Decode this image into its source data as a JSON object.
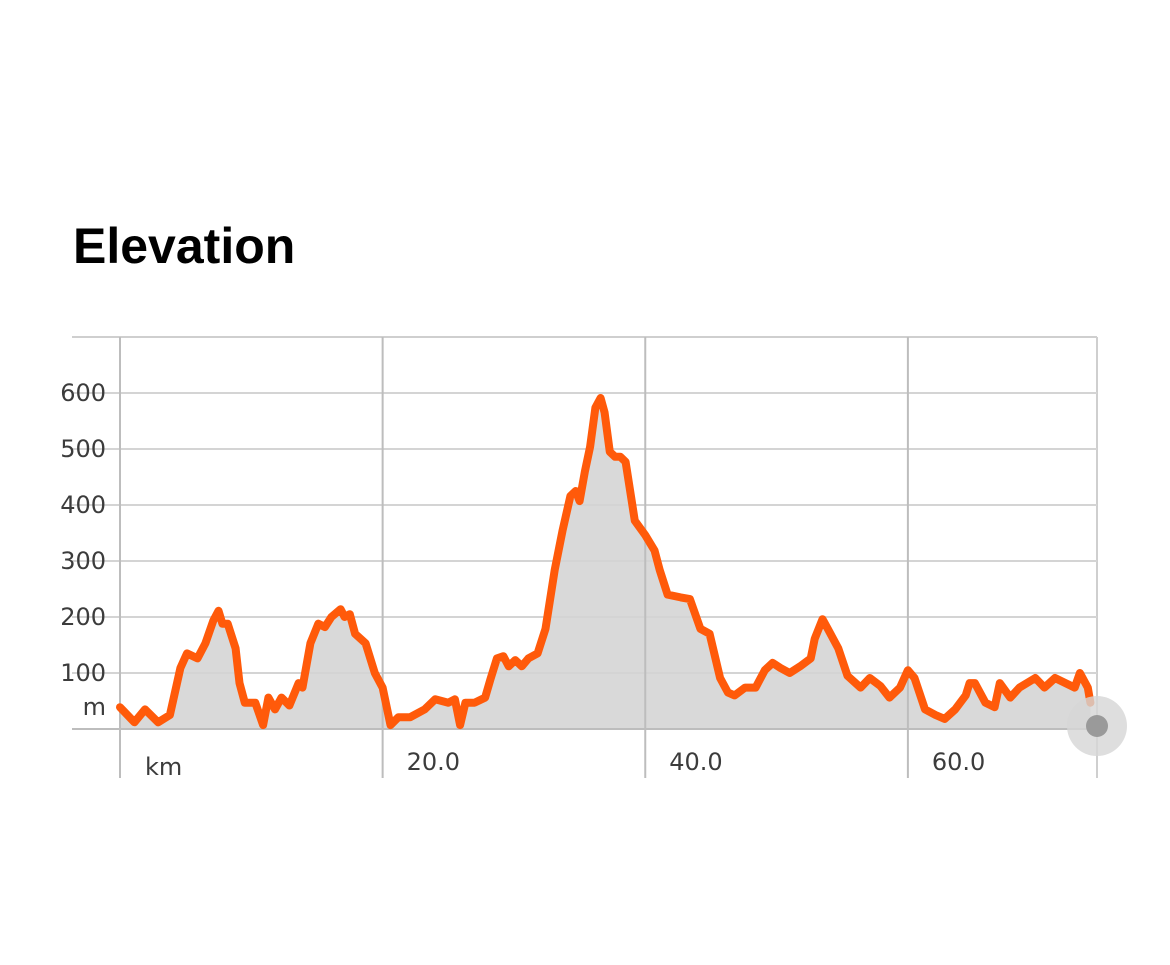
{
  "chart_data": {
    "type": "area",
    "title": "Elevation",
    "series": [
      {
        "name": "Elevation",
        "color": "#ff5a0a",
        "fill": "#d9d9d9",
        "x": [
          0.0,
          1.1,
          1.9,
          2.9,
          3.8,
          4.6,
          5.1,
          5.9,
          6.5,
          7.1,
          7.5,
          7.8,
          8.2,
          8.8,
          9.1,
          9.5,
          10.3,
          10.9,
          11.3,
          11.8,
          12.3,
          12.9,
          13.6,
          13.9,
          14.5,
          15.1,
          15.6,
          16.1,
          16.8,
          17.1,
          17.5,
          17.9,
          18.7,
          19.4,
          20.0,
          20.6,
          21.2,
          22.1,
          23.2,
          24.0,
          25.0,
          25.5,
          25.9,
          26.3,
          27.0,
          27.8,
          28.2,
          28.7,
          29.2,
          29.6,
          30.1,
          30.6,
          31.1,
          31.8,
          32.4,
          33.1,
          33.7,
          34.3,
          34.7,
          35.0,
          35.4,
          35.8,
          36.2,
          36.6,
          36.9,
          37.3,
          37.7,
          38.1,
          38.5,
          39.2,
          40.0,
          40.7,
          41.1,
          41.7,
          42.7,
          43.4,
          44.2,
          44.9,
          45.7,
          46.3,
          46.8,
          47.6,
          48.4,
          49.1,
          49.7,
          50.3,
          51.0,
          51.8,
          52.6,
          52.9,
          53.5,
          53.9,
          54.7,
          55.4,
          56.4,
          57.1,
          57.9,
          58.6,
          59.4,
          60.0,
          60.5,
          61.3,
          62.1,
          62.8,
          63.6,
          64.4,
          64.7,
          65.1,
          65.9,
          66.6,
          67.0,
          67.8,
          68.5,
          69.7,
          70.4,
          71.2,
          72.0,
          72.7,
          73.1,
          73.7,
          73.9
        ],
        "values": [
          39,
          12,
          35,
          12,
          25,
          109,
          135,
          126,
          153,
          193,
          211,
          188,
          188,
          144,
          82,
          47,
          47,
          7,
          56,
          35,
          56,
          42,
          82,
          74,
          153,
          188,
          182,
          200,
          214,
          200,
          205,
          170,
          153,
          100,
          74,
          7,
          21,
          21,
          35,
          53,
          47,
          53,
          7,
          47,
          47,
          56,
          88,
          126,
          130,
          112,
          123,
          112,
          126,
          135,
          179,
          284,
          354,
          416,
          425,
          407,
          460,
          504,
          574,
          591,
          565,
          495,
          486,
          486,
          477,
          372,
          346,
          319,
          284,
          240,
          235,
          232,
          179,
          170,
          91,
          65,
          60,
          74,
          74,
          105,
          118,
          109,
          100,
          112,
          126,
          161,
          196,
          179,
          144,
          95,
          74,
          91,
          77,
          56,
          74,
          105,
          91,
          35,
          25,
          18,
          35,
          60,
          82,
          82,
          47,
          39,
          82,
          56,
          74,
          91,
          74,
          91,
          82,
          74,
          100,
          74,
          47
        ]
      }
    ],
    "xlim": [
      0,
      74.4
    ],
    "ylim": [
      0,
      700
    ],
    "xticks": [
      {
        "value": 0,
        "label": "km"
      },
      {
        "value": 20,
        "label": "20.0"
      },
      {
        "value": 40,
        "label": "40.0"
      },
      {
        "value": 60,
        "label": "60.0"
      }
    ],
    "yticks": [
      {
        "value": 0,
        "label": "m"
      },
      100,
      200,
      300,
      400,
      500,
      600
    ],
    "grid": true
  }
}
